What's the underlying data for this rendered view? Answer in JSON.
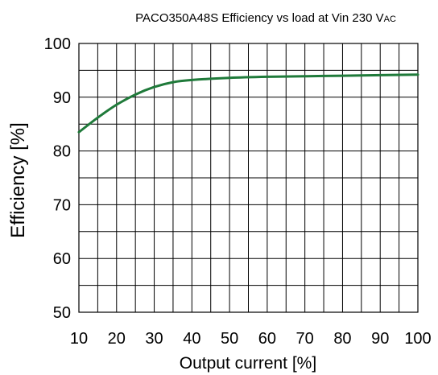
{
  "chart_data": {
    "type": "line",
    "title": "PACO350A48S Efficiency vs load at Vin 230 VAC",
    "title_main": "PACO350A48S Efficiency vs load at Vin 230 V",
    "title_suffix": "AC",
    "xlabel": "Output current [%]",
    "ylabel": "Efficiency [%]",
    "xlim": [
      10,
      100
    ],
    "ylim": [
      50,
      100
    ],
    "x_ticks": [
      "10",
      "20",
      "30",
      "40",
      "50",
      "60",
      "70",
      "80",
      "90",
      "100"
    ],
    "y_ticks": [
      "50",
      "60",
      "70",
      "80",
      "90",
      "100"
    ],
    "x_tick_values": [
      10,
      20,
      30,
      40,
      50,
      60,
      70,
      80,
      90,
      100
    ],
    "y_tick_values": [
      50,
      60,
      70,
      80,
      90,
      100
    ],
    "x_grid_step": 5,
    "y_grid_step": 5,
    "grid": true,
    "legend": "none",
    "series": [
      {
        "color": "#1f7a3a",
        "x": [
          10,
          15,
          20,
          25,
          30,
          35,
          40,
          50,
          60,
          70,
          80,
          90,
          100
        ],
        "y": [
          83.5,
          86.2,
          88.6,
          90.5,
          91.9,
          92.8,
          93.2,
          93.6,
          93.8,
          93.9,
          94.0,
          94.1,
          94.2
        ]
      }
    ]
  }
}
